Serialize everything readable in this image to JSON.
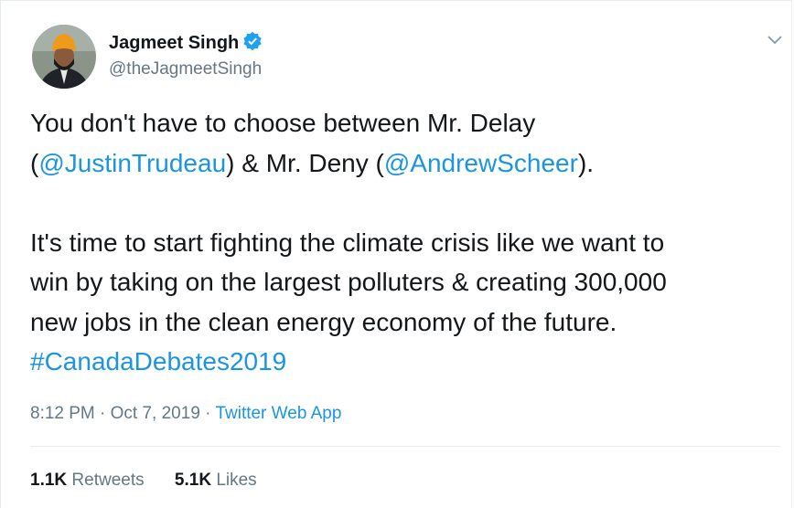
{
  "user": {
    "name": "Jagmeet Singh",
    "handle": "@theJagmeetSingh"
  },
  "tweet": {
    "paragraphs": [
      [
        [
          {
            "text": "You don't have to choose between Mr. Delay",
            "link": false
          }
        ],
        [
          {
            "text": "(",
            "link": false
          },
          {
            "text": "@JustinTrudeau",
            "link": true
          },
          {
            "text": ") & Mr. Deny (",
            "link": false
          },
          {
            "text": "@AndrewScheer",
            "link": true
          },
          {
            "text": ").",
            "link": false
          }
        ]
      ],
      [
        [
          {
            "text": "It's time to start fighting the climate crisis like we want to",
            "link": false
          }
        ],
        [
          {
            "text": "win by taking on the largest polluters & creating 300,000",
            "link": false
          }
        ],
        [
          {
            "text": "new jobs in the clean energy economy of the future.",
            "link": false
          }
        ],
        [
          {
            "text": "#CanadaDebates2019",
            "link": true
          }
        ]
      ]
    ]
  },
  "meta": {
    "time": "8:12 PM",
    "separator": "·",
    "date": "Oct 7, 2019",
    "source": "Twitter Web App"
  },
  "stats": {
    "retweets": {
      "count": "1.1K",
      "label": "Retweets"
    },
    "likes": {
      "count": "5.1K",
      "label": "Likes"
    }
  }
}
